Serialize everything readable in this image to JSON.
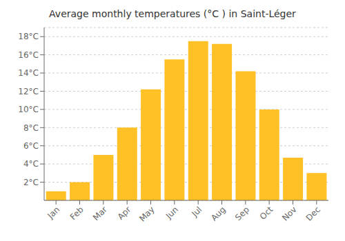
{
  "chart_data": {
    "type": "bar",
    "title": "Average monthly temperatures (°C ) in Saint-Léger",
    "categories": [
      "Jan",
      "Feb",
      "Mar",
      "Apr",
      "May",
      "Jun",
      "Jul",
      "Aug",
      "Sep",
      "Oct",
      "Nov",
      "Dec"
    ],
    "values": [
      1.0,
      2.0,
      5.0,
      8.0,
      12.2,
      15.5,
      17.5,
      17.2,
      14.2,
      10.0,
      4.7,
      3.0
    ],
    "color": "#FFC125",
    "ylim": [
      0,
      19
    ],
    "yticks": [
      {
        "value": 2,
        "label": "2°C"
      },
      {
        "value": 4,
        "label": "4°C"
      },
      {
        "value": 6,
        "label": "6°C"
      },
      {
        "value": 8,
        "label": "8°C"
      },
      {
        "value": 10,
        "label": "10°C"
      },
      {
        "value": 12,
        "label": "12°C"
      },
      {
        "value": 14,
        "label": "14°C"
      },
      {
        "value": 16,
        "label": "16°C"
      },
      {
        "value": 18,
        "label": "18°C"
      }
    ],
    "grid": true
  }
}
